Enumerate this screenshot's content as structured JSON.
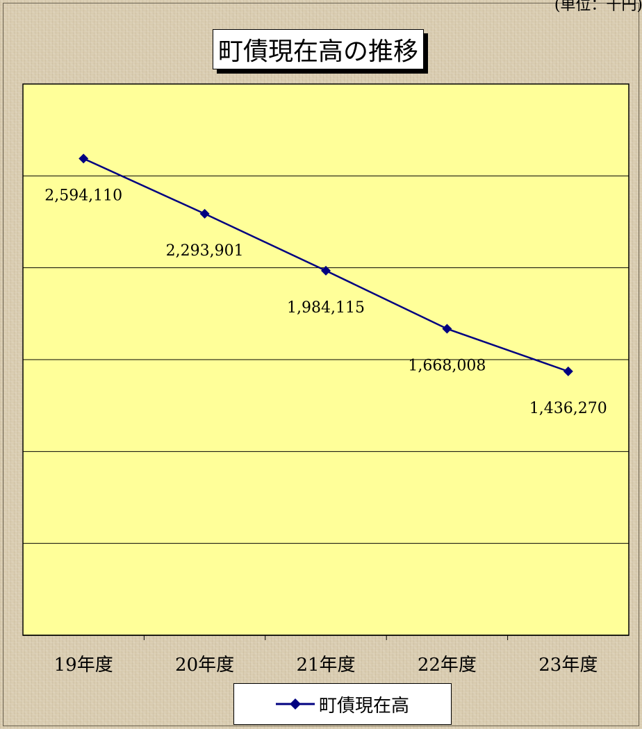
{
  "unit_note": "(単位：千円)",
  "chart_data": {
    "type": "line",
    "title": "町債現在高の推移",
    "categories": [
      "19年度",
      "20年度",
      "21年度",
      "22年度",
      "23年度"
    ],
    "series": [
      {
        "name": "町債現在高",
        "values": [
          2594110,
          2293901,
          1984115,
          1668008,
          1436270
        ],
        "labels": [
          "2,594,110",
          "2,293,901",
          "1,984,115",
          "1,668,008",
          "1,436,270"
        ]
      }
    ],
    "ylim": [
      0,
      3000000
    ],
    "grid": "horizontal",
    "legend_position": "bottom",
    "colors": {
      "plot_area": "#ffff99",
      "series_line": "#000080",
      "grid": "#000000"
    }
  }
}
